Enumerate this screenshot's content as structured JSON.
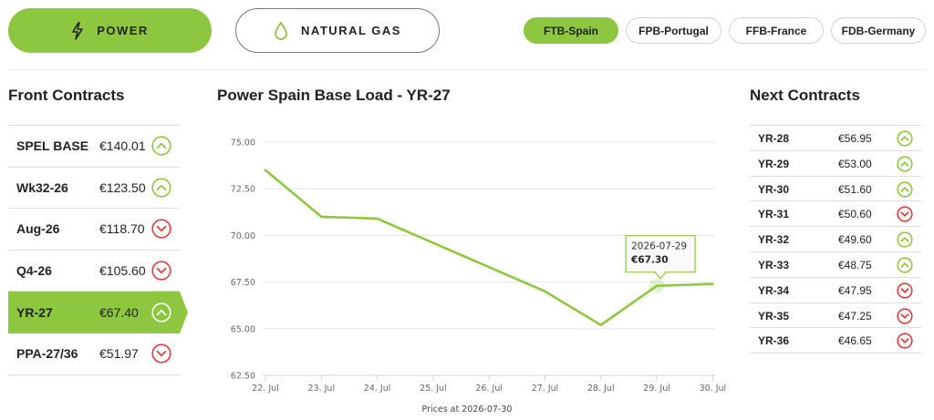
{
  "energy_tabs": [
    {
      "label": "POWER",
      "icon": "lightning-icon",
      "active": true
    },
    {
      "label": "NATURAL GAS",
      "icon": "drop-icon",
      "active": false
    }
  ],
  "markets": [
    {
      "label": "FTB-Spain",
      "active": true
    },
    {
      "label": "FPB-Portugal",
      "active": false
    },
    {
      "label": "FFB-France",
      "active": false
    },
    {
      "label": "FDB-Germany",
      "active": false
    }
  ],
  "front": {
    "title": "Front Contracts",
    "rows": [
      {
        "name": "SPEL BASE",
        "price": "€140.01",
        "trend": "up",
        "active": false
      },
      {
        "name": "Wk32-26",
        "price": "€123.50",
        "trend": "up",
        "active": false
      },
      {
        "name": "Aug-26",
        "price": "€118.70",
        "trend": "down",
        "active": false
      },
      {
        "name": "Q4-26",
        "price": "€105.60",
        "trend": "down",
        "active": false
      },
      {
        "name": "YR-27",
        "price": "€67.40",
        "trend": "up",
        "active": true
      },
      {
        "name": "PPA-27/36",
        "price": "€51.97",
        "trend": "down",
        "active": false
      }
    ]
  },
  "chart": {
    "title": "Power Spain Base Load - YR-27",
    "footer": "Prices at 2026-07-30",
    "tooltip": {
      "date": "2026-07-29",
      "value": "€67.30"
    }
  },
  "chart_data": {
    "type": "line",
    "title": "Power Spain Base Load - YR-27",
    "x": [
      "22. Jul",
      "23. Jul",
      "24. Jul",
      "25. Jul",
      "26. Jul",
      "27. Jul",
      "28. Jul",
      "29. Jul",
      "30. Jul"
    ],
    "series": [
      {
        "values": [
          73.5,
          71.0,
          70.9,
          69.6,
          68.3,
          67.0,
          65.2,
          67.3,
          67.4
        ]
      }
    ],
    "yticks": [
      "75.00",
      "72.50",
      "70.00",
      "67.50",
      "65.00",
      "62.50"
    ],
    "ylim": [
      62.5,
      75.0
    ],
    "grid": true,
    "line_color": "#8dc63f"
  },
  "next": {
    "title": "Next Contracts",
    "rows": [
      {
        "name": "YR-28",
        "price": "€56.95",
        "trend": "up"
      },
      {
        "name": "YR-29",
        "price": "€53.00",
        "trend": "up"
      },
      {
        "name": "YR-30",
        "price": "€51.60",
        "trend": "up"
      },
      {
        "name": "YR-31",
        "price": "€50.60",
        "trend": "down"
      },
      {
        "name": "YR-32",
        "price": "€49.60",
        "trend": "up"
      },
      {
        "name": "YR-33",
        "price": "€48.75",
        "trend": "up"
      },
      {
        "name": "YR-34",
        "price": "€47.95",
        "trend": "down"
      },
      {
        "name": "YR-35",
        "price": "€47.25",
        "trend": "down"
      },
      {
        "name": "YR-36",
        "price": "€46.65",
        "trend": "down"
      }
    ]
  },
  "colors": {
    "up": "#8dc63f",
    "down": "#e23b3b",
    "accent": "#8dc63f"
  }
}
